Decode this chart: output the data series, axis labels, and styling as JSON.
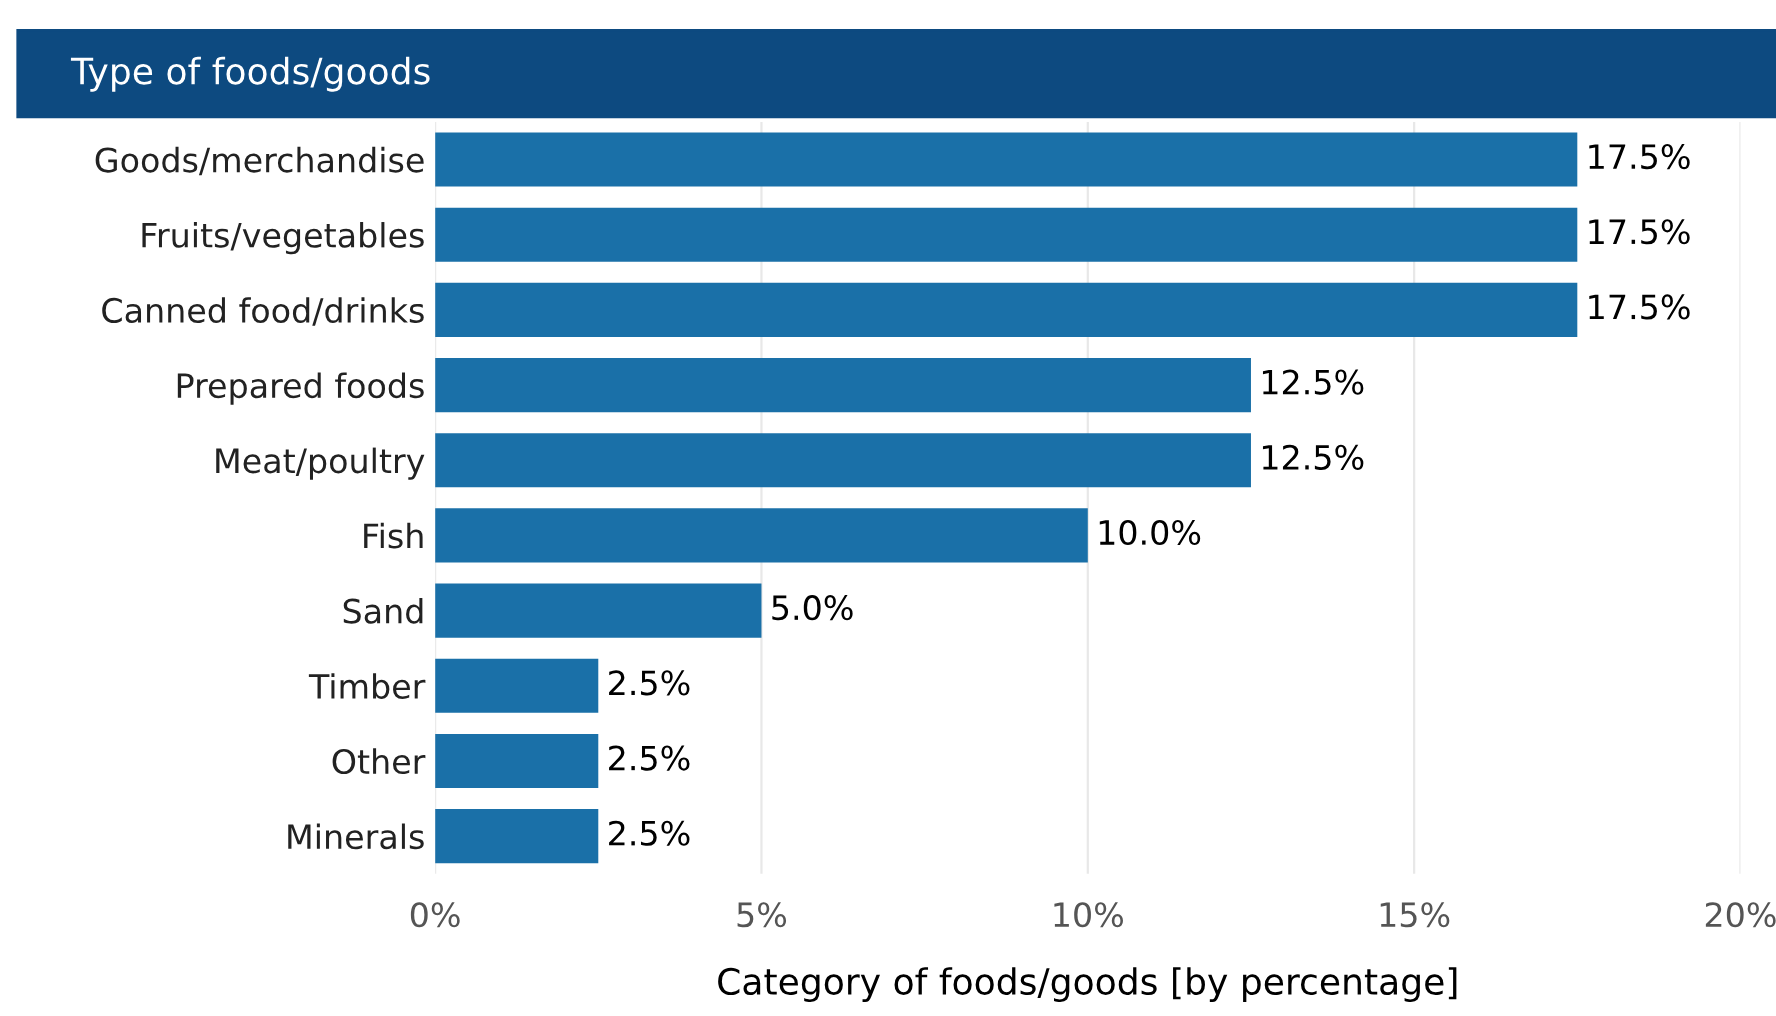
{
  "chart_data": {
    "type": "bar",
    "orientation": "horizontal",
    "title": "Type of foods/goods",
    "xlabel": "Category of foods/goods [by percentage]",
    "categories": [
      "Goods/merchandise",
      "Fruits/vegetables",
      "Canned food/drinks",
      "Prepared foods",
      "Meat/poultry",
      "Fish",
      "Sand",
      "Timber",
      "Other",
      "Minerals"
    ],
    "values": [
      17.5,
      17.5,
      17.5,
      12.5,
      12.5,
      10.0,
      5.0,
      2.5,
      2.5,
      2.5
    ],
    "value_labels": [
      "17.5%",
      "17.5%",
      "17.5%",
      "12.5%",
      "12.5%",
      "10.0%",
      "5.0%",
      "2.5%",
      "2.5%",
      "2.5%"
    ],
    "color": "#1a70a8",
    "xlim": [
      0,
      20
    ],
    "xticks": [
      {
        "value": 0,
        "label": "0%"
      },
      {
        "value": 5,
        "label": "5%"
      },
      {
        "value": 10,
        "label": "10%"
      },
      {
        "value": 15,
        "label": "15%"
      },
      {
        "value": 20,
        "label": "20%"
      }
    ],
    "grid": "x"
  }
}
